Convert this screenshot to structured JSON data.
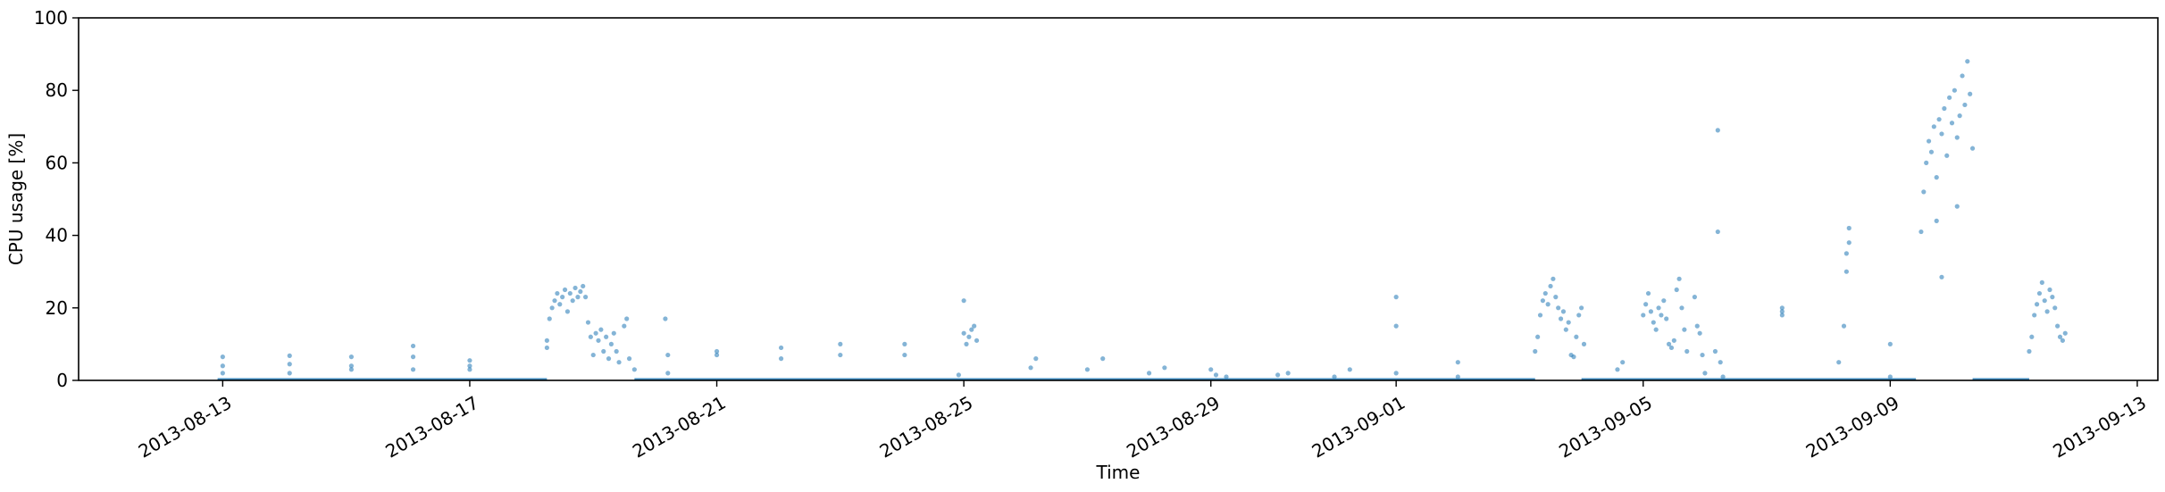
{
  "chart_data": {
    "type": "scatter",
    "xlabel": "Time",
    "ylabel": "CPU usage [%]",
    "ylim": [
      0,
      100
    ],
    "xlim": [
      "2013-08-10T16:00",
      "2013-09-13T08:00"
    ],
    "x_ticks": [
      "2013-08-13",
      "2013-08-17",
      "2013-08-21",
      "2013-08-25",
      "2013-08-29",
      "2013-09-01",
      "2013-09-05",
      "2013-09-09",
      "2013-09-13"
    ],
    "y_ticks": [
      0,
      20,
      40,
      60,
      80,
      100
    ],
    "marker_color": "#1f77b4",
    "grid": false,
    "series": [
      {
        "points": [
          [
            "2013-08-13T00:00",
            6.5
          ],
          [
            "2013-08-13T00:00",
            4.0
          ],
          [
            "2013-08-13T00:00",
            2.0
          ],
          [
            "2013-08-14T02:00",
            6.8
          ],
          [
            "2013-08-14T02:00",
            4.5
          ],
          [
            "2013-08-14T02:00",
            2.0
          ],
          [
            "2013-08-15T02:00",
            6.5
          ],
          [
            "2013-08-15T02:00",
            4.0
          ],
          [
            "2013-08-15T02:00",
            3.0
          ],
          [
            "2013-08-16T02:00",
            9.5
          ],
          [
            "2013-08-16T02:00",
            6.5
          ],
          [
            "2013-08-16T02:00",
            3.0
          ],
          [
            "2013-08-17T00:00",
            5.5
          ],
          [
            "2013-08-17T00:00",
            4.0
          ],
          [
            "2013-08-17T00:00",
            3.0
          ],
          [
            "2013-08-18T06:00",
            9.0
          ],
          [
            "2013-08-18T06:00",
            11.0
          ],
          [
            "2013-08-18T07:00",
            17.0
          ],
          [
            "2013-08-18T08:00",
            20.0
          ],
          [
            "2013-08-18T09:00",
            22.0
          ],
          [
            "2013-08-18T10:00",
            24.0
          ],
          [
            "2013-08-18T11:00",
            21.0
          ],
          [
            "2013-08-18T12:00",
            23.0
          ],
          [
            "2013-08-18T13:00",
            25.0
          ],
          [
            "2013-08-18T14:00",
            19.0
          ],
          [
            "2013-08-18T15:00",
            24.0
          ],
          [
            "2013-08-18T16:00",
            22.0
          ],
          [
            "2013-08-18T17:00",
            25.5
          ],
          [
            "2013-08-18T18:00",
            23.0
          ],
          [
            "2013-08-18T19:00",
            24.5
          ],
          [
            "2013-08-18T20:00",
            26.0
          ],
          [
            "2013-08-18T21:00",
            23.0
          ],
          [
            "2013-08-18T22:00",
            16.0
          ],
          [
            "2013-08-18T23:00",
            12.0
          ],
          [
            "2013-08-19T00:00",
            7.0
          ],
          [
            "2013-08-19T01:00",
            13.0
          ],
          [
            "2013-08-19T02:00",
            11.0
          ],
          [
            "2013-08-19T03:00",
            14.0
          ],
          [
            "2013-08-19T04:00",
            8.0
          ],
          [
            "2013-08-19T05:00",
            12.0
          ],
          [
            "2013-08-19T06:00",
            6.0
          ],
          [
            "2013-08-19T07:00",
            10.0
          ],
          [
            "2013-08-19T08:00",
            13.0
          ],
          [
            "2013-08-19T09:00",
            8.0
          ],
          [
            "2013-08-19T10:00",
            5.0
          ],
          [
            "2013-08-19T12:00",
            15.0
          ],
          [
            "2013-08-19T13:00",
            17.0
          ],
          [
            "2013-08-19T14:00",
            6.0
          ],
          [
            "2013-08-19T16:00",
            3.0
          ],
          [
            "2013-08-20T04:00",
            17.0
          ],
          [
            "2013-08-20T05:00",
            7.0
          ],
          [
            "2013-08-20T05:00",
            2.0
          ],
          [
            "2013-08-21T00:00",
            8.0
          ],
          [
            "2013-08-21T00:00",
            7.0
          ],
          [
            "2013-08-22T01:00",
            9.0
          ],
          [
            "2013-08-22T01:00",
            6.0
          ],
          [
            "2013-08-23T00:00",
            10.0
          ],
          [
            "2013-08-23T00:00",
            7.0
          ],
          [
            "2013-08-24T01:00",
            10.0
          ],
          [
            "2013-08-24T01:00",
            7.0
          ],
          [
            "2013-08-24T22:00",
            1.5
          ],
          [
            "2013-08-25T00:00",
            22.0
          ],
          [
            "2013-08-25T00:00",
            13.0
          ],
          [
            "2013-08-25T01:00",
            10.0
          ],
          [
            "2013-08-25T02:00",
            12.0
          ],
          [
            "2013-08-25T03:00",
            14.0
          ],
          [
            "2013-08-25T04:00",
            15.0
          ],
          [
            "2013-08-25T05:00",
            11.0
          ],
          [
            "2013-08-26T02:00",
            3.5
          ],
          [
            "2013-08-26T04:00",
            6.0
          ],
          [
            "2013-08-27T00:00",
            3.0
          ],
          [
            "2013-08-27T06:00",
            6.0
          ],
          [
            "2013-08-28T00:00",
            2.0
          ],
          [
            "2013-08-28T06:00",
            3.5
          ],
          [
            "2013-08-29T00:00",
            3.0
          ],
          [
            "2013-08-29T02:00",
            1.5
          ],
          [
            "2013-08-29T06:00",
            1.0
          ],
          [
            "2013-08-30T02:00",
            1.5
          ],
          [
            "2013-08-30T06:00",
            2.0
          ],
          [
            "2013-08-31T00:00",
            1.0
          ],
          [
            "2013-08-31T06:00",
            3.0
          ],
          [
            "2013-09-01T00:00",
            23.0
          ],
          [
            "2013-09-01T00:00",
            15.0
          ],
          [
            "2013-09-01T00:00",
            2.0
          ],
          [
            "2013-09-02T00:00",
            5.0
          ],
          [
            "2013-09-02T00:00",
            1.0
          ],
          [
            "2013-09-03T06:00",
            8.0
          ],
          [
            "2013-09-03T07:00",
            12.0
          ],
          [
            "2013-09-03T08:00",
            18.0
          ],
          [
            "2013-09-03T09:00",
            22.0
          ],
          [
            "2013-09-03T10:00",
            24.0
          ],
          [
            "2013-09-03T11:00",
            21.0
          ],
          [
            "2013-09-03T12:00",
            26.0
          ],
          [
            "2013-09-03T13:00",
            28.0
          ],
          [
            "2013-09-03T14:00",
            23.0
          ],
          [
            "2013-09-03T15:00",
            20.0
          ],
          [
            "2013-09-03T16:00",
            17.0
          ],
          [
            "2013-09-03T17:00",
            19.0
          ],
          [
            "2013-09-03T18:00",
            14.0
          ],
          [
            "2013-09-03T19:00",
            16.0
          ],
          [
            "2013-09-03T20:00",
            7.0
          ],
          [
            "2013-09-03T21:00",
            6.5
          ],
          [
            "2013-09-03T22:00",
            12.0
          ],
          [
            "2013-09-03T23:00",
            18.0
          ],
          [
            "2013-09-04T00:00",
            20.0
          ],
          [
            "2013-09-04T01:00",
            10.0
          ],
          [
            "2013-09-04T14:00",
            3.0
          ],
          [
            "2013-09-04T16:00",
            5.0
          ],
          [
            "2013-09-05T00:00",
            18.0
          ],
          [
            "2013-09-05T01:00",
            21.0
          ],
          [
            "2013-09-05T02:00",
            24.0
          ],
          [
            "2013-09-05T03:00",
            19.0
          ],
          [
            "2013-09-05T04:00",
            16.0
          ],
          [
            "2013-09-05T05:00",
            14.0
          ],
          [
            "2013-09-05T06:00",
            20.0
          ],
          [
            "2013-09-05T07:00",
            18.0
          ],
          [
            "2013-09-05T08:00",
            22.0
          ],
          [
            "2013-09-05T09:00",
            17.0
          ],
          [
            "2013-09-05T10:00",
            10.0
          ],
          [
            "2013-09-05T11:00",
            9.0
          ],
          [
            "2013-09-05T12:00",
            11.0
          ],
          [
            "2013-09-05T13:00",
            25.0
          ],
          [
            "2013-09-05T14:00",
            28.0
          ],
          [
            "2013-09-05T15:00",
            20.0
          ],
          [
            "2013-09-05T16:00",
            14.0
          ],
          [
            "2013-09-05T17:00",
            8.0
          ],
          [
            "2013-09-05T20:00",
            23.0
          ],
          [
            "2013-09-05T21:00",
            15.0
          ],
          [
            "2013-09-05T22:00",
            13.0
          ],
          [
            "2013-09-05T23:00",
            7.0
          ],
          [
            "2013-09-06T00:00",
            2.0
          ],
          [
            "2013-09-06T04:00",
            8.0
          ],
          [
            "2013-09-06T05:00",
            69.0
          ],
          [
            "2013-09-06T05:00",
            41.0
          ],
          [
            "2013-09-06T06:00",
            5.0
          ],
          [
            "2013-09-06T07:00",
            1.0
          ],
          [
            "2013-09-07T06:00",
            19.0
          ],
          [
            "2013-09-07T06:00",
            18.0
          ],
          [
            "2013-09-07T06:00",
            20.0
          ],
          [
            "2013-09-08T04:00",
            5.0
          ],
          [
            "2013-09-08T06:00",
            15.0
          ],
          [
            "2013-09-08T07:00",
            30.0
          ],
          [
            "2013-09-08T07:00",
            35.0
          ],
          [
            "2013-09-08T08:00",
            38.0
          ],
          [
            "2013-09-08T08:00",
            42.0
          ],
          [
            "2013-09-09T00:00",
            10.0
          ],
          [
            "2013-09-09T00:00",
            1.0
          ],
          [
            "2013-09-09T12:00",
            41.0
          ],
          [
            "2013-09-09T13:00",
            52.0
          ],
          [
            "2013-09-09T14:00",
            60.0
          ],
          [
            "2013-09-09T15:00",
            66.0
          ],
          [
            "2013-09-09T16:00",
            63.0
          ],
          [
            "2013-09-09T17:00",
            70.0
          ],
          [
            "2013-09-09T18:00",
            56.0
          ],
          [
            "2013-09-09T19:00",
            72.0
          ],
          [
            "2013-09-09T20:00",
            68.0
          ],
          [
            "2013-09-09T21:00",
            75.0
          ],
          [
            "2013-09-09T22:00",
            62.0
          ],
          [
            "2013-09-09T23:00",
            78.0
          ],
          [
            "2013-09-10T00:00",
            71.0
          ],
          [
            "2013-09-10T01:00",
            80.0
          ],
          [
            "2013-09-10T02:00",
            67.0
          ],
          [
            "2013-09-10T03:00",
            73.0
          ],
          [
            "2013-09-10T04:00",
            84.0
          ],
          [
            "2013-09-10T05:00",
            76.0
          ],
          [
            "2013-09-10T06:00",
            88.0
          ],
          [
            "2013-09-10T07:00",
            79.0
          ],
          [
            "2013-09-10T08:00",
            64.0
          ],
          [
            "2013-09-09T18:00",
            44.0
          ],
          [
            "2013-09-09T20:00",
            28.5
          ],
          [
            "2013-09-10T02:00",
            48.0
          ],
          [
            "2013-09-11T06:00",
            8.0
          ],
          [
            "2013-09-11T07:00",
            12.0
          ],
          [
            "2013-09-11T08:00",
            18.0
          ],
          [
            "2013-09-11T09:00",
            21.0
          ],
          [
            "2013-09-11T10:00",
            24.0
          ],
          [
            "2013-09-11T11:00",
            27.0
          ],
          [
            "2013-09-11T12:00",
            22.0
          ],
          [
            "2013-09-11T13:00",
            19.0
          ],
          [
            "2013-09-11T14:00",
            25.0
          ],
          [
            "2013-09-11T15:00",
            23.0
          ],
          [
            "2013-09-11T16:00",
            20.0
          ],
          [
            "2013-09-11T17:00",
            15.0
          ],
          [
            "2013-09-11T18:00",
            12.0
          ],
          [
            "2013-09-11T19:00",
            11.0
          ],
          [
            "2013-09-11T20:00",
            13.0
          ]
        ]
      }
    ],
    "baseline_segments": [
      {
        "start": "2013-08-12T22:00",
        "end": "2013-08-18T06:00",
        "y": 0
      },
      {
        "start": "2013-08-19T16:00",
        "end": "2013-09-03T06:00",
        "y": 0
      },
      {
        "start": "2013-09-04T00:00",
        "end": "2013-09-09T10:00",
        "y": 0
      },
      {
        "start": "2013-09-10T08:00",
        "end": "2013-09-11T06:00",
        "y": 0
      }
    ]
  }
}
